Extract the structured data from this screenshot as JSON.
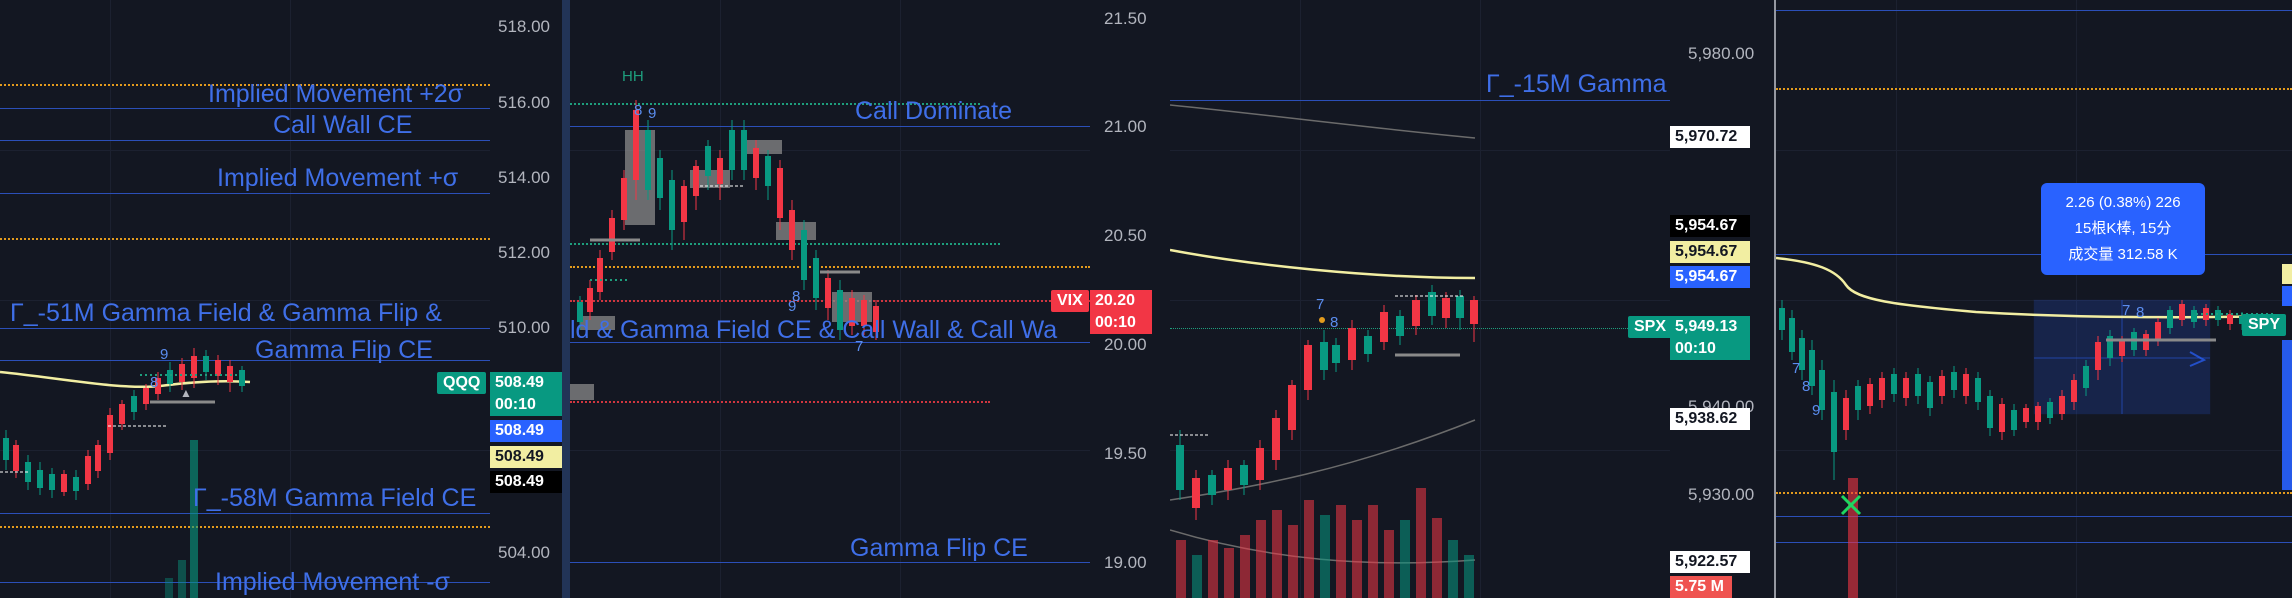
{
  "panels": {
    "qqq": {
      "lines": {
        "implied_up_2": "Implied Movement +2σ",
        "call_wall": "Call Wall CE",
        "implied_up_1": "Implied Movement +σ",
        "gamma_field_flip": "Γ_-51M  Gamma Field & Gamma Flip &",
        "gamma_flip": "Gamma Flip CE",
        "gamma_field": "Γ_-58M  Gamma Field CE",
        "implied_down_1": "Implied Movement -σ"
      },
      "markers": {
        "nine": "9",
        "eight": "8"
      },
      "ticker": "QQQ",
      "axis_ticks": [
        "518.00",
        "516.00",
        "514.00",
        "512.00",
        "510.00",
        "504.00"
      ],
      "price_tags": [
        "508.49",
        "00:10",
        "508.49",
        "508.49",
        "508.49"
      ]
    },
    "vix": {
      "lines": {
        "call_dominate": "Call Dominate",
        "gamma_field_call_wall": "ld & Gamma Field CE & Call Wall & Call Wa",
        "gamma_flip": "Gamma Flip CE"
      },
      "markers": {
        "hh": "HH",
        "eight": "8",
        "nine": "9",
        "seven": "7"
      },
      "ticker": "VIX",
      "axis_ticks": [
        "21.50",
        "21.00",
        "20.50",
        "20.00",
        "19.50",
        "19.00"
      ],
      "price_tags": [
        "20.20",
        "00:10"
      ]
    },
    "spx": {
      "lines": {
        "gamma": "Γ_-15M  Gamma"
      },
      "markers": {
        "seven": "7",
        "eight": "8"
      },
      "ticker": "SPX",
      "axis_ticks": [
        "5,980.00",
        "5,970.72",
        "5,954.67",
        "5,954.67",
        "5,954.67",
        "5,940.00",
        "5,938.62",
        "5,930.00",
        "5,922.57"
      ],
      "price_tags": [
        "5,949.13",
        "00:10"
      ],
      "volume_tag": "5.75 M"
    },
    "spy": {
      "ticker": "SPY",
      "markers": {
        "seven": "7",
        "eight": "8",
        "nine": "9",
        "seven2": "7",
        "eight2": "8"
      },
      "tooltip": {
        "line1": "2.26 (0.38%) 226",
        "line2": "15根K棒, 15分",
        "line3": "成交量 312.58 K"
      }
    }
  },
  "colors": {
    "background": "#131722",
    "blue_line": "#2b4fb8",
    "label_blue": "#3f6fe8",
    "up": "#089981",
    "down": "#f23645",
    "orange": "#e39b1d",
    "ma_yellow": "#f2eea2"
  }
}
